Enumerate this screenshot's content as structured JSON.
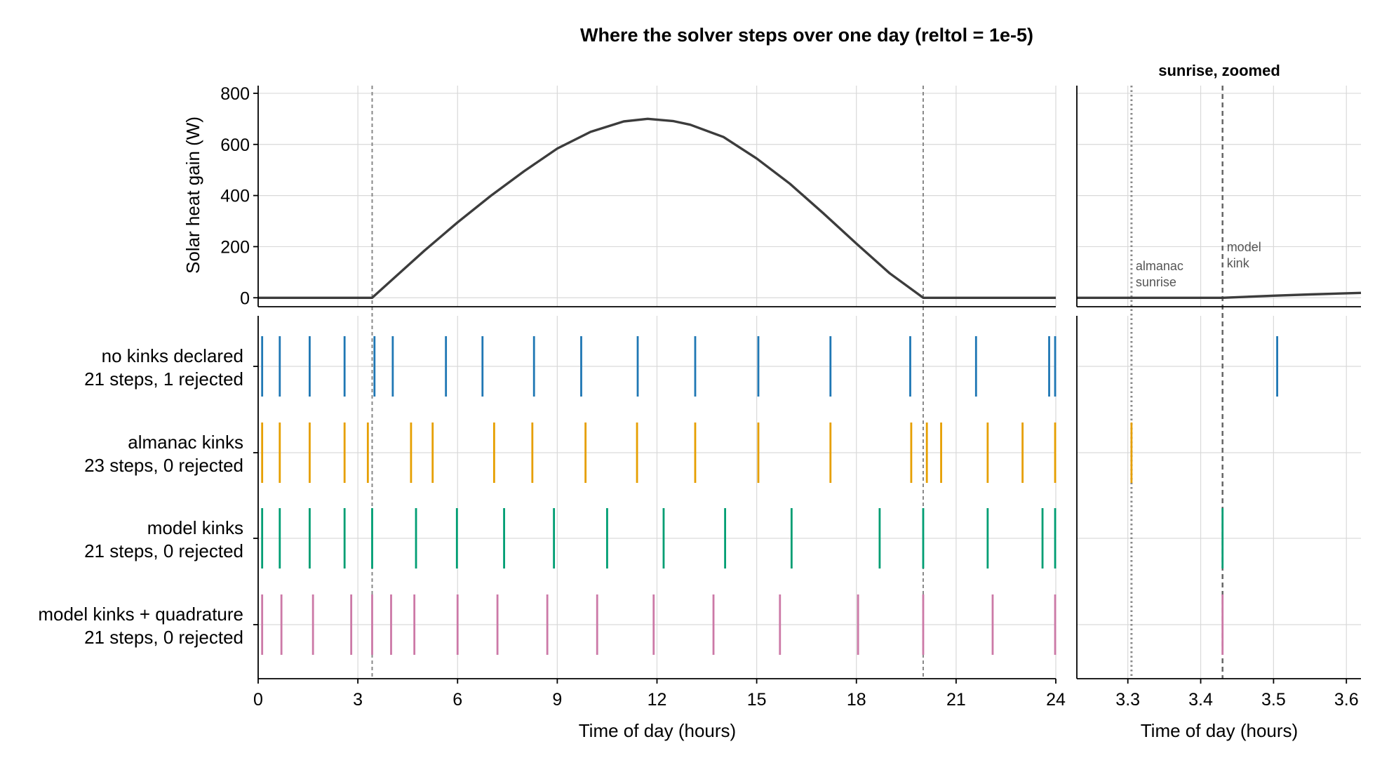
{
  "chart_data": [
    {
      "type": "line",
      "title": "Where the solver steps over one day (reltol = 1e-5)",
      "ylabel": "Solar heat gain (W)",
      "xlabel": "Time of day (hours)",
      "xlim": [
        0,
        24
      ],
      "ylim": [
        -35,
        830
      ],
      "xticks": [
        0,
        3,
        6,
        9,
        12,
        15,
        18,
        21,
        24
      ],
      "yticks": [
        0,
        200,
        400,
        600,
        800
      ],
      "grid": true,
      "series": [
        {
          "color": "#3c3c3c",
          "x": [
            0,
            3.43,
            4,
            5,
            6,
            7,
            8,
            9,
            10,
            11,
            11.72,
            12.5,
            13,
            14,
            15,
            16,
            17,
            18,
            19,
            20.01,
            24
          ],
          "y": [
            0,
            0,
            67,
            184,
            295,
            399,
            495,
            584,
            649,
            690,
            700,
            691,
            677,
            629,
            545,
            446,
            331,
            212,
            96,
            0,
            0
          ]
        }
      ],
      "markers": [
        {
          "x": 3.43,
          "style": "dashed",
          "color": "#888888"
        },
        {
          "x": 20.01,
          "style": "dashed",
          "color": "#888888"
        }
      ]
    },
    {
      "type": "line",
      "title": "sunrise, zoomed",
      "xlabel": "Time of day (hours)",
      "xlim": [
        3.23,
        3.62
      ],
      "xticks": [
        3.3,
        3.4,
        3.5,
        3.6
      ],
      "xtick_labels": [
        "3.3",
        "3.4",
        "3.5",
        "3.6"
      ],
      "grid": true,
      "series": [
        {
          "color": "#3c3c3c",
          "x": [
            3.23,
            3.43,
            3.5,
            3.55,
            3.62
          ],
          "y": [
            0,
            0,
            8,
            13,
            19
          ]
        }
      ],
      "markers": [
        {
          "x": 3.305,
          "style": "dotted",
          "color": "#888888",
          "label": [
            "almanac",
            "sunrise"
          ]
        },
        {
          "x": 3.43,
          "style": "dashed",
          "color": "#666666",
          "label": [
            "model",
            "kink"
          ]
        }
      ]
    },
    {
      "type": "scatter",
      "marker": "vertical-tick",
      "xlabel": "Time of day (hours)",
      "xlim": [
        0,
        24
      ],
      "zoom_xlim": [
        3.23,
        3.62
      ],
      "rows": [
        {
          "label_line1": "no kinks declared",
          "label_line2": "21 steps, 1 rejected",
          "color": "#1f77b4",
          "steps": [
            0.12,
            0.65,
            1.55,
            2.6,
            3.5,
            4.05,
            5.65,
            6.75,
            8.3,
            9.72,
            11.42,
            13.15,
            15.05,
            17.22,
            19.62,
            21.6,
            23.8,
            23.98
          ],
          "zoom_steps": [
            3.505
          ]
        },
        {
          "label_line1": "almanac kinks",
          "label_line2": "23 steps, 0 rejected",
          "color": "#e69f00",
          "steps": [
            0.12,
            0.65,
            1.55,
            2.6,
            3.3,
            4.6,
            5.25,
            7.1,
            8.25,
            9.85,
            11.4,
            13.15,
            15.05,
            17.22,
            19.65,
            20.12,
            20.55,
            21.95,
            23.0,
            23.98
          ],
          "zoom_steps": [
            3.305
          ]
        },
        {
          "label_line1": "model kinks",
          "label_line2": "21 steps, 0 rejected",
          "color": "#009e73",
          "steps": [
            0.12,
            0.65,
            1.55,
            2.6,
            3.43,
            4.75,
            5.98,
            7.4,
            8.9,
            10.5,
            12.2,
            14.05,
            16.05,
            18.7,
            20.01,
            21.95,
            23.6,
            23.98
          ],
          "zoom_steps": [
            3.43
          ]
        },
        {
          "label_line1": "model kinks + quadrature",
          "label_line2": "21 steps, 0 rejected",
          "color": "#cc79a7",
          "steps": [
            0.12,
            0.7,
            1.65,
            2.8,
            3.43,
            4.0,
            4.7,
            6.0,
            7.2,
            8.7,
            10.2,
            11.9,
            13.7,
            15.7,
            18.05,
            20.01,
            22.1,
            23.98
          ],
          "zoom_steps": [
            3.43
          ]
        }
      ],
      "markers": [
        {
          "x": 3.43,
          "style": "dashed",
          "color": "#888888"
        },
        {
          "x": 20.01,
          "style": "dashed",
          "color": "#888888"
        }
      ]
    }
  ]
}
